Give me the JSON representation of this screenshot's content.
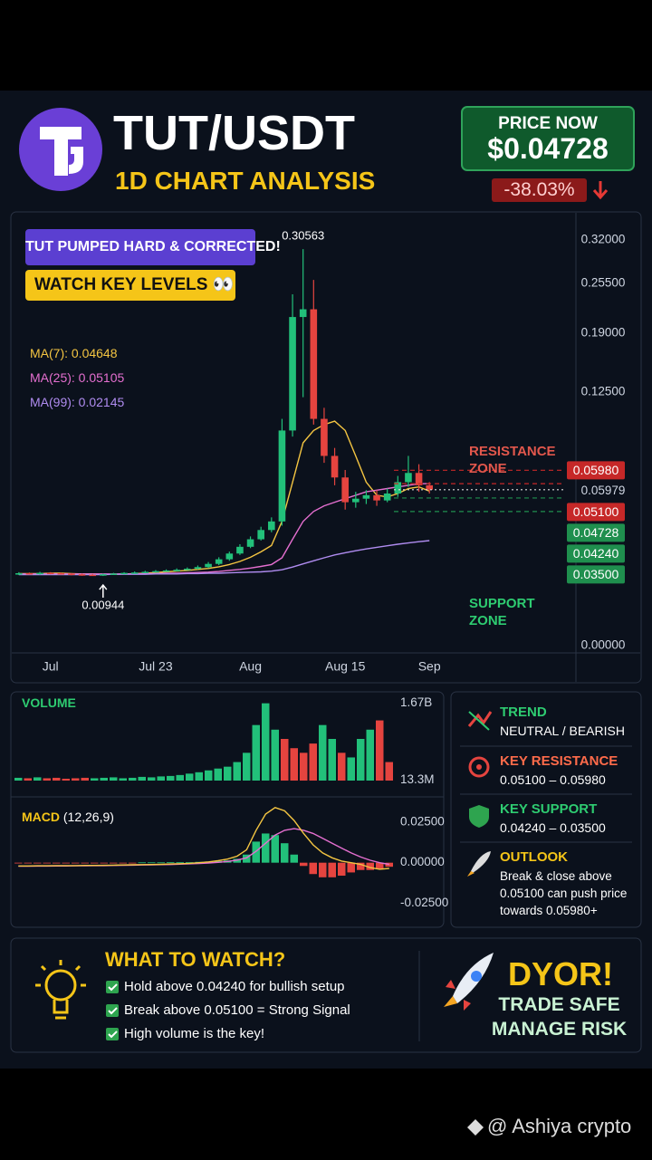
{
  "header": {
    "pair": "TUT/USDT",
    "subtitle": "1D CHART ANALYSIS",
    "price_label": "PRICE NOW",
    "price": "$0.04728",
    "change": "-38.03%"
  },
  "badges": [
    "TUT PUMPED HARD & CORRECTED!",
    "WATCH KEY LEVELS 👀"
  ],
  "chart_data": [
    {
      "type": "candlestick",
      "categories": [
        null,
        null,
        null,
        "Jul",
        null,
        null,
        null,
        null,
        null,
        null,
        null,
        null,
        null,
        "Jul 23",
        null,
        null,
        null,
        null,
        null,
        null,
        null,
        null,
        "Aug",
        null,
        null,
        null,
        null,
        null,
        null,
        null,
        null,
        "Aug 15",
        null,
        null,
        null,
        null,
        null,
        null,
        null,
        "Sep"
      ],
      "open": [
        0.01,
        0.0102,
        0.0101,
        0.0103,
        0.0102,
        0.0101,
        0.0099,
        0.0098,
        0.0097,
        0.0099,
        0.0101,
        0.0103,
        0.0104,
        0.0106,
        0.0108,
        0.011,
        0.0112,
        0.0115,
        0.012,
        0.013,
        0.0145,
        0.0165,
        0.019,
        0.022,
        0.026,
        0.03,
        0.09,
        0.21,
        0.22,
        0.1,
        0.07,
        0.055,
        0.04,
        0.042,
        0.044,
        0.041,
        0.045,
        0.052,
        0.058,
        0.05
      ],
      "high": [
        0.0105,
        0.0104,
        0.0106,
        0.0105,
        0.0104,
        0.0102,
        0.0101,
        0.01,
        0.0101,
        0.0103,
        0.0105,
        0.0107,
        0.0109,
        0.0111,
        0.0113,
        0.0116,
        0.0119,
        0.0125,
        0.0136,
        0.0152,
        0.0172,
        0.02,
        0.0232,
        0.0275,
        0.032,
        0.1,
        0.24,
        0.30563,
        0.26,
        0.11,
        0.076,
        0.06,
        0.046,
        0.047,
        0.047,
        0.048,
        0.056,
        0.07,
        0.064,
        0.052
      ],
      "low": [
        0.0097,
        0.0098,
        0.0098,
        0.0099,
        0.0098,
        0.0096,
        0.0095,
        0.0095,
        0.00944,
        0.0097,
        0.0099,
        0.0101,
        0.0102,
        0.0104,
        0.0106,
        0.0108,
        0.0111,
        0.0113,
        0.0117,
        0.0126,
        0.014,
        0.016,
        0.0185,
        0.0215,
        0.025,
        0.028,
        0.085,
        0.12,
        0.095,
        0.065,
        0.05,
        0.036,
        0.037,
        0.039,
        0.038,
        0.04,
        0.043,
        0.049,
        0.046,
        0.045
      ],
      "close": [
        0.0102,
        0.0101,
        0.0103,
        0.0102,
        0.0101,
        0.0099,
        0.0098,
        0.0097,
        0.0099,
        0.0101,
        0.0103,
        0.0104,
        0.0106,
        0.0108,
        0.011,
        0.0112,
        0.0115,
        0.012,
        0.013,
        0.0145,
        0.0165,
        0.019,
        0.022,
        0.026,
        0.03,
        0.09,
        0.21,
        0.22,
        0.1,
        0.07,
        0.055,
        0.04,
        0.042,
        0.044,
        0.041,
        0.045,
        0.052,
        0.058,
        0.05,
        0.04728
      ],
      "up_color": "#22c07a",
      "down_color": "#e5443f",
      "series": [
        {
          "name": "MA(7): 0.04648",
          "color": "#f4c542",
          "values": [
            0.0101,
            0.0101,
            0.0101,
            0.0102,
            0.0102,
            0.0101,
            0.01,
            0.01,
            0.0099,
            0.0099,
            0.01,
            0.0101,
            0.0102,
            0.0104,
            0.0106,
            0.0108,
            0.011,
            0.0113,
            0.0116,
            0.0121,
            0.0128,
            0.0138,
            0.0152,
            0.0171,
            0.0195,
            0.03,
            0.052,
            0.08,
            0.09,
            0.095,
            0.098,
            0.09,
            0.07,
            0.052,
            0.044,
            0.043,
            0.045,
            0.048,
            0.049,
            0.04648
          ]
        },
        {
          "name": "MA(25): 0.05105",
          "color": "#e56fd0",
          "values": [
            0.01,
            0.01,
            0.01,
            0.01,
            0.01,
            0.01,
            0.01,
            0.01,
            0.01,
            0.01,
            0.01,
            0.01,
            0.0101,
            0.0101,
            0.0102,
            0.0102,
            0.0103,
            0.0104,
            0.0105,
            0.0107,
            0.011,
            0.0113,
            0.0117,
            0.0122,
            0.0128,
            0.015,
            0.022,
            0.03,
            0.035,
            0.038,
            0.04,
            0.042,
            0.044,
            0.046,
            0.047,
            0.048,
            0.049,
            0.05,
            0.051,
            0.05105
          ]
        },
        {
          "name": "MA(99): 0.02145",
          "color": "#b08cf0",
          "values": [
            0.0098,
            0.0098,
            0.0098,
            0.0098,
            0.0098,
            0.0098,
            0.0098,
            0.0098,
            0.0098,
            0.0099,
            0.0099,
            0.0099,
            0.0099,
            0.01,
            0.01,
            0.01,
            0.0101,
            0.0101,
            0.0102,
            0.0102,
            0.0103,
            0.0104,
            0.0105,
            0.0106,
            0.0108,
            0.0112,
            0.012,
            0.013,
            0.014,
            0.015,
            0.016,
            0.0168,
            0.0175,
            0.0182,
            0.0188,
            0.0194,
            0.02,
            0.0205,
            0.021,
            0.02145
          ]
        }
      ],
      "ylim": [
        0,
        0.32
      ],
      "scale": "sqrt",
      "yticks": [
        {
          "value": 0.32,
          "label": "0.32000"
        },
        {
          "value": 0.255,
          "label": "0.25500"
        },
        {
          "value": 0.19,
          "label": "0.19000"
        },
        {
          "value": 0.125,
          "label": "0.12500"
        },
        0.05979,
        {
          "value": 0,
          "label": "0.00000"
        }
      ],
      "levels": [
        {
          "value": 0.0598,
          "label": "0.05980",
          "color": "#c62828",
          "line": "dashed"
        },
        {
          "value": 0.051,
          "label": "0.05100",
          "color": "#c62828",
          "line": "dashed"
        },
        {
          "value": 0.04728,
          "label": "0.04728",
          "color": "#1f8f4e",
          "line": "dotted"
        },
        {
          "value": 0.0424,
          "label": "0.04240",
          "color": "#1f8f4e",
          "line": "dashed"
        },
        {
          "value": 0.035,
          "label": "0.03500",
          "color": "#1f8f4e",
          "line": "dashed"
        }
      ],
      "zones": [
        {
          "label": "RESISTANCE ZONE",
          "color": "#e2574c"
        },
        {
          "label": "SUPPORT ZONE",
          "color": "#2ecc71"
        }
      ]
    },
    {
      "type": "bar",
      "title": "VOLUME",
      "values": [
        60000000,
        50000000,
        70000000,
        50000000,
        60000000,
        40000000,
        50000000,
        60000000,
        50000000,
        60000000,
        70000000,
        50000000,
        60000000,
        80000000,
        70000000,
        90000000,
        100000000,
        120000000,
        150000000,
        180000000,
        220000000,
        260000000,
        300000000,
        400000000,
        600000000,
        1200000000,
        1670000000,
        1100000000,
        900000000,
        700000000,
        600000000,
        800000000,
        1200000000,
        900000000,
        600000000,
        500000000,
        900000000,
        1100000000,
        1300000000,
        400000000
      ],
      "up_color": "#22c07a",
      "down_color": "#e5443f",
      "ylim": [
        0,
        1800000000
      ],
      "yticks": [
        {
          "value": 1670000000,
          "label": "1.67B"
        },
        {
          "value": 13300000,
          "label": "13.3M"
        }
      ]
    },
    {
      "type": "macd",
      "title": "MACD",
      "params": "(12,26,9)",
      "macd": {
        "color": "#f4c542",
        "values": [
          -0.002,
          -0.002,
          -0.0019,
          -0.0019,
          -0.0018,
          -0.0018,
          -0.0018,
          -0.0017,
          -0.0017,
          -0.0016,
          -0.0015,
          -0.0014,
          -0.0013,
          -0.0012,
          -0.0011,
          -0.001,
          -0.0008,
          -0.0006,
          -0.0004,
          0.0,
          0.0005,
          0.0012,
          0.0022,
          0.004,
          0.008,
          0.02,
          0.03,
          0.034,
          0.032,
          0.026,
          0.018,
          0.011,
          0.006,
          0.003,
          0.001,
          0.0,
          -0.001,
          -0.003,
          -0.004,
          -0.0035
        ]
      },
      "signal": {
        "color": "#e56fd0",
        "values": [
          -0.0022,
          -0.0022,
          -0.0021,
          -0.0021,
          -0.002,
          -0.002,
          -0.0019,
          -0.0019,
          -0.0018,
          -0.0018,
          -0.0017,
          -0.0016,
          -0.0015,
          -0.0014,
          -0.0013,
          -0.0012,
          -0.0011,
          -0.0009,
          -0.0007,
          -0.0005,
          -0.0002,
          0.0002,
          0.0008,
          0.0016,
          0.003,
          0.007,
          0.012,
          0.017,
          0.02,
          0.021,
          0.02,
          0.018,
          0.015,
          0.012,
          0.009,
          0.006,
          0.0035,
          0.0015,
          0.0,
          -0.001
        ]
      },
      "histogram": [
        -0.0003,
        -0.0003,
        -0.0003,
        -0.0003,
        -0.0003,
        -0.0003,
        -0.0003,
        -0.0003,
        -0.0003,
        -0.0002,
        -0.0002,
        -0.0002,
        -0.0002,
        0.0002,
        0.0002,
        0.0002,
        0.0003,
        0.0003,
        0.0003,
        0.0005,
        0.0007,
        0.001,
        0.0014,
        0.0024,
        0.005,
        0.013,
        0.018,
        0.017,
        0.012,
        0.005,
        -0.002,
        -0.007,
        -0.009,
        -0.009,
        -0.008,
        -0.006,
        -0.0045,
        -0.0045,
        -0.004,
        -0.0025
      ],
      "up_color": "#22c07a",
      "down_color": "#e5443f",
      "ylim": [
        -0.032,
        0.035
      ],
      "yticks": [
        {
          "value": 0.025,
          "label": "0.02500"
        },
        {
          "value": 0,
          "label": "0.00000"
        },
        {
          "value": -0.025,
          "label": "-0.02500"
        }
      ]
    }
  ],
  "info": [
    {
      "title": "TREND",
      "text": "NEUTRAL / BEARISH",
      "color": "#2ecc71"
    },
    {
      "title": "KEY RESISTANCE",
      "text": "0.05100 – 0.05980",
      "color": "#ff6b4a"
    },
    {
      "title": "KEY SUPPORT",
      "text": "0.04240 – 0.03500",
      "color": "#2ecc71"
    },
    {
      "title": "OUTLOOK",
      "text": "Break & close above 0.05100 can push price towards 0.05980+",
      "color": "#f5c518"
    }
  ],
  "watch": {
    "title": "WHAT TO WATCH?",
    "items": [
      "Hold above 0.04240 for bullish setup",
      "Break above 0.05100 = Strong Signal",
      "High volume is the key!"
    ]
  },
  "dyor": {
    "title": "DYOR!",
    "lines": [
      "TRADE SAFE",
      "MANAGE RISK"
    ]
  },
  "watermark": "@ Ashiya crypto"
}
